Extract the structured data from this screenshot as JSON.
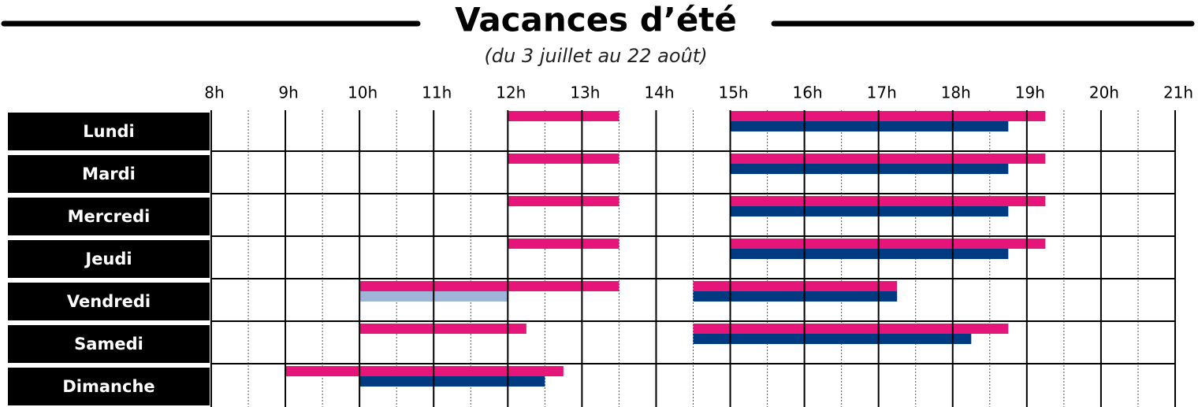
{
  "chart_data": {
    "type": "gantt",
    "title": "Vacances d’été",
    "subtitle": "(du 3 juillet au 22 août)",
    "xlim": [
      8,
      21
    ],
    "xticks": [
      {
        "value": 8,
        "label": "8h"
      },
      {
        "value": 9,
        "label": "9h"
      },
      {
        "value": 10,
        "label": "10h"
      },
      {
        "value": 11,
        "label": "11h"
      },
      {
        "value": 12,
        "label": "12h"
      },
      {
        "value": 13,
        "label": "13h"
      },
      {
        "value": 14,
        "label": "14h"
      },
      {
        "value": 15,
        "label": "15h"
      },
      {
        "value": 16,
        "label": "16h"
      },
      {
        "value": 17,
        "label": "17h"
      },
      {
        "value": 18,
        "label": "18h"
      },
      {
        "value": 19,
        "label": "19h"
      },
      {
        "value": 20,
        "label": "20h"
      },
      {
        "value": 21,
        "label": "21h"
      }
    ],
    "minor_xticks": [
      8.5,
      9.5,
      10.5,
      11.5,
      12.5,
      13.5,
      14.5,
      15.5,
      16.5,
      17.5,
      18.5,
      19.5,
      20.5
    ],
    "rows": [
      {
        "label": "Lundi",
        "bars": [
          {
            "start": 12,
            "end": 13.5,
            "lane": 0,
            "color": "#e5157a"
          },
          {
            "start": 15,
            "end": 19.25,
            "lane": 0,
            "color": "#e5157a"
          },
          {
            "start": 15,
            "end": 18.75,
            "lane": 1,
            "color": "#003a80"
          }
        ]
      },
      {
        "label": "Mardi",
        "bars": [
          {
            "start": 12,
            "end": 13.5,
            "lane": 0,
            "color": "#e5157a"
          },
          {
            "start": 15,
            "end": 19.25,
            "lane": 0,
            "color": "#e5157a"
          },
          {
            "start": 15,
            "end": 18.75,
            "lane": 1,
            "color": "#003a80"
          }
        ]
      },
      {
        "label": "Mercredi",
        "bars": [
          {
            "start": 12,
            "end": 13.5,
            "lane": 0,
            "color": "#e5157a"
          },
          {
            "start": 15,
            "end": 19.25,
            "lane": 0,
            "color": "#e5157a"
          },
          {
            "start": 15,
            "end": 18.75,
            "lane": 1,
            "color": "#003a80"
          }
        ]
      },
      {
        "label": "Jeudi",
        "bars": [
          {
            "start": 12,
            "end": 13.5,
            "lane": 0,
            "color": "#e5157a"
          },
          {
            "start": 15,
            "end": 19.25,
            "lane": 0,
            "color": "#e5157a"
          },
          {
            "start": 15,
            "end": 18.75,
            "lane": 1,
            "color": "#003a80"
          }
        ]
      },
      {
        "label": "Vendredi",
        "bars": [
          {
            "start": 10,
            "end": 13.5,
            "lane": 0,
            "color": "#e5157a"
          },
          {
            "start": 10,
            "end": 12,
            "lane": 1,
            "color": "#9fb4d9"
          },
          {
            "start": 14.5,
            "end": 17.25,
            "lane": 0,
            "color": "#e5157a"
          },
          {
            "start": 14.5,
            "end": 17.25,
            "lane": 1,
            "color": "#003a80"
          }
        ]
      },
      {
        "label": "Samedi",
        "bars": [
          {
            "start": 10,
            "end": 12.25,
            "lane": 0,
            "color": "#e5157a"
          },
          {
            "start": 14.5,
            "end": 18.75,
            "lane": 0,
            "color": "#e5157a"
          },
          {
            "start": 14.5,
            "end": 18.25,
            "lane": 1,
            "color": "#003a80"
          }
        ]
      },
      {
        "label": "Dimanche",
        "bars": [
          {
            "start": 9,
            "end": 12.75,
            "lane": 0,
            "color": "#e5157a"
          },
          {
            "start": 10,
            "end": 12.5,
            "lane": 1,
            "color": "#003a80"
          }
        ]
      }
    ]
  }
}
